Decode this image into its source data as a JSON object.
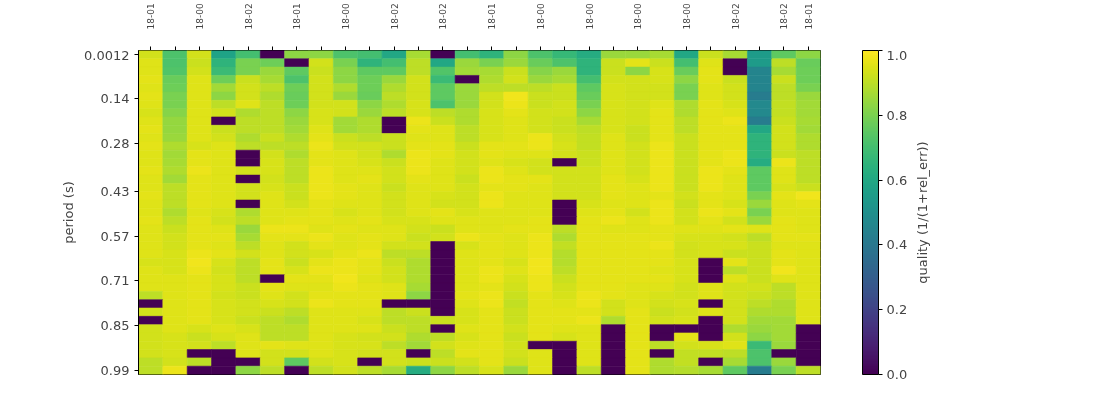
{
  "chart_data": {
    "type": "heatmap",
    "ylabel": "period (s)",
    "clabel": "quality (1/(1+rel_err))",
    "categories": [
      "18-01",
      null,
      "18-00",
      null,
      "18-02",
      null,
      "18-01",
      null,
      "18-00",
      null,
      "18-02",
      null,
      "18-02",
      null,
      "18-01",
      null,
      "18-00",
      null,
      "18-00",
      null,
      "18-00",
      null,
      "18-00",
      null,
      "18-02",
      null,
      "18-02",
      "18-01"
    ],
    "ylim": [
      1.003,
      -0.0118
    ],
    "yticks": [
      0.0012,
      0.14,
      0.28,
      0.43,
      0.57,
      0.71,
      0.85,
      0.99
    ],
    "clim": [
      0,
      1
    ],
    "cticks": [
      {
        "value": 0,
        "label": "0.0"
      },
      0.2,
      0.4,
      0.6,
      0.8,
      {
        "value": 1,
        "label": "1.0"
      }
    ],
    "cells": [
      [
        0.93,
        0.72,
        0.93,
        0.58,
        0.7,
        0,
        0.83,
        0.83,
        0.72,
        0.7,
        0.6,
        0.87,
        0,
        0.7,
        0.65,
        0.83,
        0.72,
        0.67,
        0.62,
        0.85,
        0.85,
        0.87,
        0.6,
        0.92,
        0.87,
        0.55,
        0.75,
        0.83
      ],
      [
        0.95,
        0.72,
        0.92,
        0.65,
        0.8,
        0.78,
        0,
        0.93,
        0.8,
        0.65,
        0.7,
        0.9,
        0.6,
        0.85,
        0.8,
        0.85,
        0.77,
        0.72,
        0.65,
        0.92,
        0.96,
        0.92,
        0.7,
        0.95,
        0,
        0.55,
        0.9,
        0.77
      ],
      [
        0.95,
        0.73,
        0.93,
        0.68,
        0.8,
        0.85,
        0.75,
        0.92,
        0.83,
        0.75,
        0.75,
        0.9,
        0.73,
        0.86,
        0.87,
        0.92,
        0.82,
        0.85,
        0.65,
        0.92,
        0.83,
        0.94,
        0.77,
        0.96,
        0,
        0.45,
        0.87,
        0.78
      ],
      [
        0.96,
        0.77,
        0.95,
        0.78,
        0.92,
        0.87,
        0.72,
        0.93,
        0.83,
        0.78,
        0.85,
        0.93,
        0.68,
        0,
        0.88,
        0.93,
        0.85,
        0.87,
        0.7,
        0.93,
        0.93,
        0.94,
        0.83,
        0.96,
        0.92,
        0.45,
        0.92,
        0.78
      ],
      [
        0.95,
        0.78,
        0.95,
        0.86,
        0.93,
        0.9,
        0.78,
        0.93,
        0.88,
        0.78,
        0.88,
        0.93,
        0.75,
        0.85,
        0.9,
        0.9,
        0.9,
        0.92,
        0.75,
        0.94,
        0.93,
        0.93,
        0.8,
        0.95,
        0.93,
        0.45,
        0.9,
        0.8
      ],
      [
        0.96,
        0.8,
        0.95,
        0.83,
        0.93,
        0.88,
        0.77,
        0.93,
        0.85,
        0.77,
        0.9,
        0.93,
        0.75,
        0.85,
        0.93,
        0.98,
        0.92,
        0.92,
        0.77,
        0.94,
        0.93,
        0.93,
        0.8,
        0.95,
        0.93,
        0.42,
        0.9,
        0.85
      ],
      [
        0.95,
        0.8,
        0.95,
        0.9,
        0.95,
        0.9,
        0.78,
        0.93,
        0.93,
        0.83,
        0.88,
        0.94,
        0.72,
        0.85,
        0.93,
        0.97,
        0.92,
        0.93,
        0.8,
        0.94,
        0.93,
        0.95,
        0.88,
        0.96,
        0.94,
        0.47,
        0.91,
        0.86
      ],
      [
        0.94,
        0.82,
        0.95,
        0.93,
        0.88,
        0.9,
        0.83,
        0.94,
        0.93,
        0.85,
        0.9,
        0.94,
        0.9,
        0.88,
        0.94,
        0.96,
        0.93,
        0.93,
        0.83,
        0.94,
        0.93,
        0.96,
        0.88,
        0.96,
        0.95,
        0.47,
        0.91,
        0.86
      ],
      [
        0.95,
        0.84,
        0.95,
        0,
        0.9,
        0.9,
        0.85,
        0.94,
        0.86,
        0.88,
        0,
        0.97,
        0.92,
        0.88,
        0.94,
        0.95,
        0.93,
        0.92,
        0.87,
        0.94,
        0.93,
        0.96,
        0.9,
        0.96,
        0.97,
        0.42,
        0.92,
        0.87
      ],
      [
        0.96,
        0.84,
        0.95,
        0.92,
        0.9,
        0.9,
        0.86,
        0.95,
        0.86,
        0.88,
        0,
        0.96,
        0.95,
        0.9,
        0.94,
        0.95,
        0.93,
        0.92,
        0.9,
        0.94,
        0.92,
        0.96,
        0.9,
        0.96,
        0.96,
        0.6,
        0.93,
        0.86
      ],
      [
        0.95,
        0.85,
        0.95,
        0.93,
        0.88,
        0.92,
        0.88,
        0.96,
        0.92,
        0.9,
        0.92,
        0.95,
        0.95,
        0.9,
        0.94,
        0.95,
        0.97,
        0.93,
        0.91,
        0.95,
        0.92,
        0.96,
        0.92,
        0.96,
        0.96,
        0.65,
        0.93,
        0.88
      ],
      [
        0.96,
        0.88,
        0.94,
        0.95,
        0.9,
        0.9,
        0.9,
        0.97,
        0.93,
        0.93,
        0.92,
        0.96,
        0.96,
        0.92,
        0.96,
        0.96,
        0.97,
        0.94,
        0.91,
        0.95,
        0.93,
        0.97,
        0.92,
        0.96,
        0.96,
        0.65,
        0.93,
        0.88
      ],
      [
        0.95,
        0.86,
        0.96,
        0.95,
        0,
        0.93,
        0.88,
        0.96,
        0.95,
        0.93,
        0.88,
        0.97,
        0.96,
        0.93,
        0.96,
        0.95,
        0.95,
        0.93,
        0.92,
        0.95,
        0.93,
        0.97,
        0.92,
        0.96,
        0.97,
        0.65,
        0.92,
        0.9
      ],
      [
        0.95,
        0.87,
        0.96,
        0.95,
        0,
        0.94,
        0.9,
        0.96,
        0.95,
        0.94,
        0.92,
        0.97,
        0.95,
        0.93,
        0.95,
        0.94,
        0.93,
        0,
        0.92,
        0.95,
        0.93,
        0.97,
        0.92,
        0.96,
        0.97,
        0.62,
        0.97,
        0.9
      ],
      [
        0.96,
        0.88,
        0.97,
        0.95,
        0.93,
        0.94,
        0.9,
        0.97,
        0.95,
        0.95,
        0.93,
        0.97,
        0.95,
        0.93,
        0.97,
        0.95,
        0.93,
        0.93,
        0.93,
        0.95,
        0.93,
        0.97,
        0.92,
        0.97,
        0.96,
        0.75,
        0.95,
        0.9
      ],
      [
        0.95,
        0.86,
        0.96,
        0.95,
        0,
        0.93,
        0.9,
        0.97,
        0.95,
        0.96,
        0.93,
        0.96,
        0.95,
        0.92,
        0.97,
        0.96,
        0.96,
        0.93,
        0.93,
        0.96,
        0.94,
        0.97,
        0.92,
        0.97,
        0.95,
        0.75,
        0.95,
        0.9
      ],
      [
        0.95,
        0.9,
        0.96,
        0.95,
        0.93,
        0.94,
        0.92,
        0.97,
        0.96,
        0.95,
        0.92,
        0.95,
        0.95,
        0.93,
        0.96,
        0.96,
        0.95,
        0.93,
        0.93,
        0.96,
        0.95,
        0.97,
        0.92,
        0.97,
        0.95,
        0.75,
        0.94,
        0.92
      ],
      [
        0.96,
        0.9,
        0.96,
        0.95,
        0.93,
        0.95,
        0.92,
        0.97,
        0.96,
        0.95,
        0.93,
        0.95,
        0.94,
        0.93,
        0.97,
        0.95,
        0.95,
        0.93,
        0.93,
        0.96,
        0.95,
        0.96,
        0.93,
        0.96,
        0.95,
        0.8,
        0.96,
        0.98
      ],
      [
        0.95,
        0.9,
        0.96,
        0.95,
        0,
        0.95,
        0.93,
        0.96,
        0.95,
        0.95,
        0.93,
        0.95,
        0.93,
        0.93,
        0.97,
        0.95,
        0.95,
        0,
        0.94,
        0.95,
        0.95,
        0.97,
        0.92,
        0.96,
        0.94,
        0.85,
        0.95,
        0.96
      ],
      [
        0.95,
        0.88,
        0.95,
        0.94,
        0.88,
        0.95,
        0.95,
        0.96,
        0.94,
        0.95,
        0.93,
        0.95,
        0.96,
        0.94,
        0.95,
        0.95,
        0.95,
        0,
        0.95,
        0.96,
        0.93,
        0.97,
        0.93,
        0.97,
        0.96,
        0.8,
        0.95,
        0.95
      ],
      [
        0.96,
        0.9,
        0.96,
        0.93,
        0.9,
        0.95,
        0.96,
        0.96,
        0.95,
        0.96,
        0.94,
        0.94,
        0.95,
        0.95,
        0.95,
        0.95,
        0.96,
        0,
        0.96,
        0.97,
        0.95,
        0.97,
        0.93,
        0.96,
        0.93,
        0.85,
        0.96,
        0.95
      ],
      [
        0.95,
        0.92,
        0.96,
        0.95,
        0.85,
        0.97,
        0.97,
        0.95,
        0.96,
        0.95,
        0.95,
        0.93,
        0.92,
        0.95,
        0.95,
        0.96,
        0.96,
        0.9,
        0.96,
        0.95,
        0.95,
        0.96,
        0.95,
        0.95,
        0.96,
        0.95,
        0.96,
        0.95
      ],
      [
        0.95,
        0.93,
        0.96,
        0.96,
        0.87,
        0.96,
        0.96,
        0.97,
        0.95,
        0.96,
        0.95,
        0.92,
        0.93,
        0.97,
        0.96,
        0.95,
        0.97,
        0.88,
        0.96,
        0.96,
        0.96,
        0.96,
        0.94,
        0.94,
        0.93,
        0.9,
        0.96,
        0.96
      ],
      [
        0.95,
        0.93,
        0.96,
        0.95,
        0.9,
        0.95,
        0.93,
        0.96,
        0.95,
        0.96,
        0.93,
        0.93,
        0,
        0.94,
        0.96,
        0.95,
        0.97,
        0.91,
        0.96,
        0.96,
        0.96,
        0.97,
        0.93,
        0.94,
        0.94,
        0.92,
        0.95,
        0.95
      ],
      [
        0.95,
        0.94,
        0.97,
        0.96,
        0.93,
        0.95,
        0.93,
        0.94,
        0.96,
        0.97,
        0.9,
        0.9,
        0,
        0.95,
        0.96,
        0.95,
        0.97,
        0.89,
        0.96,
        0.96,
        0.96,
        0.96,
        0.93,
        0.94,
        0.92,
        0.92,
        0.96,
        0.95
      ],
      [
        0.94,
        0.94,
        0.98,
        0.94,
        0.9,
        0.96,
        0.92,
        0.96,
        0.97,
        0.96,
        0.92,
        0.88,
        0,
        0.95,
        0.96,
        0.94,
        0.98,
        0.89,
        0.96,
        0.96,
        0.96,
        0.96,
        0.94,
        0,
        0.96,
        0.92,
        0.96,
        0.95
      ],
      [
        0.95,
        0.94,
        0.97,
        0.93,
        0.9,
        0.96,
        0.94,
        0.97,
        0.97,
        0.96,
        0.93,
        0.88,
        0,
        0.95,
        0.97,
        0.95,
        0.98,
        0.9,
        0.96,
        0.96,
        0.96,
        0.95,
        0.94,
        0,
        0.9,
        0.92,
        0.98,
        0.95
      ],
      [
        0.95,
        0.95,
        0.96,
        0.94,
        0.9,
        0,
        0.96,
        0.96,
        0.98,
        0.95,
        0.93,
        0.88,
        0,
        0.95,
        0.97,
        0.94,
        0.97,
        0.92,
        0.96,
        0.96,
        0.96,
        0.96,
        0.94,
        0,
        0.95,
        0.92,
        0.95,
        0.95
      ],
      [
        0.95,
        0.95,
        0.96,
        0.94,
        0.92,
        0.96,
        0.95,
        0.95,
        0.97,
        0.96,
        0.95,
        0.87,
        0,
        0.95,
        0.96,
        0.93,
        0.97,
        0.93,
        0.96,
        0.96,
        0.95,
        0.95,
        0.93,
        0.95,
        0.93,
        0.93,
        0.9,
        0.95
      ],
      [
        0.9,
        0.95,
        0.96,
        0.93,
        0.92,
        0.95,
        0.93,
        0.96,
        0.96,
        0.96,
        0.95,
        0.83,
        0,
        0.96,
        0.97,
        0.92,
        0.96,
        0.94,
        0.97,
        0.96,
        0.95,
        0.94,
        0.93,
        0.95,
        0.93,
        0.92,
        0.9,
        0.95
      ],
      [
        0,
        0.95,
        0.96,
        0.94,
        0.93,
        0.94,
        0.93,
        0.97,
        0.96,
        0.96,
        0,
        0,
        0,
        0.95,
        0.97,
        0.91,
        0.96,
        0.95,
        0.97,
        0.93,
        0.95,
        0.93,
        0.94,
        0,
        0.93,
        0.9,
        0.88,
        0.95
      ],
      [
        0.93,
        0.95,
        0.96,
        0.94,
        0.93,
        0.92,
        0.9,
        0.95,
        0.95,
        0.95,
        0.9,
        0.92,
        0,
        0.94,
        0.96,
        0.92,
        0.96,
        0.96,
        0.96,
        0.93,
        0.96,
        0.92,
        0.93,
        0.95,
        0.93,
        0.88,
        0.88,
        0.95
      ],
      [
        0,
        0.95,
        0.96,
        0.94,
        0.92,
        0.9,
        0.88,
        0.95,
        0.95,
        0.94,
        0.9,
        0.9,
        0.92,
        0.94,
        0.96,
        0.92,
        0.96,
        0.96,
        0.97,
        0.88,
        0.96,
        0.93,
        0.94,
        0,
        0.93,
        0.86,
        0.86,
        0.95
      ],
      [
        0.93,
        0.95,
        0.94,
        0.95,
        0.94,
        0.9,
        0.9,
        0.95,
        0.95,
        0.95,
        0.92,
        0.9,
        0,
        0.95,
        0.96,
        0.93,
        0.96,
        0.95,
        0.95,
        0,
        0.96,
        0,
        0,
        0,
        0.88,
        0.85,
        0.86,
        0
      ],
      [
        0.93,
        0.94,
        0.92,
        0.94,
        0.95,
        0.9,
        0.9,
        0.95,
        0.94,
        0.93,
        0.93,
        0.88,
        0.9,
        0.94,
        0.96,
        0.92,
        0.96,
        0.94,
        0.95,
        0,
        0.96,
        0,
        0.96,
        0,
        0.93,
        0.83,
        0.86,
        0
      ],
      [
        0.93,
        0.94,
        0.93,
        0.9,
        0.95,
        0.96,
        0.95,
        0.95,
        0.94,
        0.94,
        0.9,
        0.86,
        0.93,
        0.95,
        0.96,
        0.93,
        0,
        0,
        0.95,
        0,
        0.96,
        0.9,
        0.93,
        0.94,
        0.95,
        0.68,
        0.85,
        0
      ],
      [
        0.93,
        0.94,
        0,
        0,
        0.95,
        0.93,
        0.93,
        0.95,
        0.94,
        0.93,
        0.93,
        0,
        0.9,
        0.96,
        0.96,
        0.93,
        0.95,
        0,
        0.95,
        0,
        0.96,
        0,
        0.91,
        0.91,
        0.9,
        0.72,
        0,
        0
      ],
      [
        0.9,
        0.93,
        0.9,
        0,
        0,
        0.93,
        0.75,
        0.93,
        0.94,
        0,
        0.93,
        0.92,
        0.92,
        0.93,
        0.96,
        0.92,
        0.95,
        0,
        0.95,
        0,
        0.96,
        0.88,
        0.91,
        0,
        0.87,
        0.72,
        0.85,
        0
      ],
      [
        0.9,
        0.97,
        0,
        0,
        0.83,
        0.9,
        0,
        0.9,
        0.93,
        0.9,
        0.87,
        0.62,
        0.83,
        0.9,
        0.94,
        0.85,
        0.95,
        0,
        0.9,
        0,
        0.96,
        0.88,
        0.89,
        0.87,
        0.75,
        0.42,
        0.8,
        0.9
      ]
    ]
  }
}
